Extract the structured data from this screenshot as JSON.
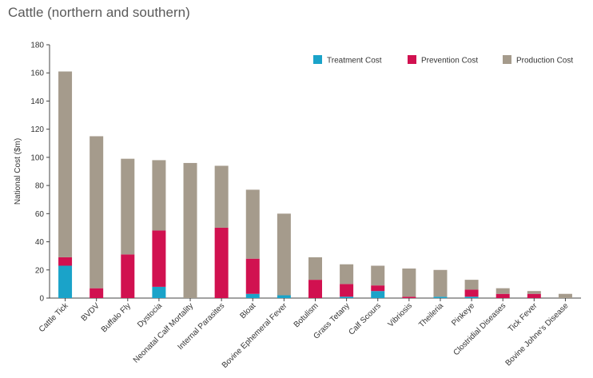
{
  "title": "Cattle (northern and southern)",
  "chart_data": {
    "type": "bar",
    "stacked": true,
    "title": "Cattle (northern and southern)",
    "xlabel": "",
    "ylabel": "National Cost ($m)",
    "ylim": [
      0,
      180
    ],
    "yticks": [
      0,
      20,
      40,
      60,
      80,
      100,
      120,
      140,
      160,
      180
    ],
    "grid": false,
    "legend_position": "top-right",
    "categories": [
      "Cattle Tick",
      "BVDV",
      "Buffalo Fly",
      "Dystocia",
      "Neonatal Calf Mortality",
      "Internal Parasites",
      "Bloat",
      "Bovine Ephemeral Fever",
      "Botulism",
      "Grass Tetany",
      "Calf Scours",
      "Vibriosis",
      "Theileria",
      "Pinkeye",
      "Clostridial Diseases",
      "Tick Fever",
      "Bovine Johne's Disease"
    ],
    "series": [
      {
        "name": "Treatment Cost",
        "color": "#1aa3c9",
        "values": [
          23,
          0,
          0,
          8,
          0,
          0,
          3,
          2,
          0,
          1,
          5,
          0,
          1,
          1,
          0,
          0,
          0
        ]
      },
      {
        "name": "Prevention Cost",
        "color": "#d11150",
        "values": [
          6,
          7,
          31,
          40,
          0,
          50,
          25,
          0,
          13,
          9,
          4,
          1,
          0,
          5,
          3,
          3,
          0
        ]
      },
      {
        "name": "Production Cost",
        "color": "#a59b8c",
        "values": [
          132,
          108,
          68,
          50,
          96,
          44,
          49,
          58,
          16,
          14,
          14,
          20,
          19,
          7,
          4,
          2,
          3
        ]
      }
    ]
  }
}
